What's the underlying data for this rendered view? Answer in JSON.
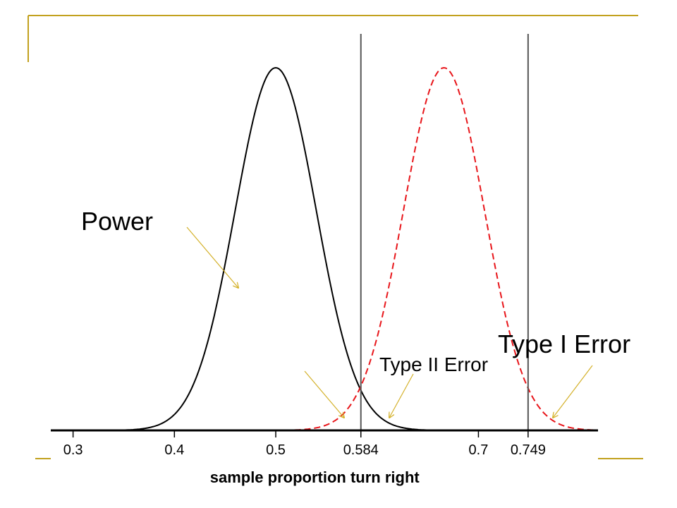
{
  "annotations": {
    "power": "Power",
    "type_two_error": "Type II Error",
    "type_one_error": "Type I Error"
  },
  "colors": {
    "null_curve": "#000000",
    "alt_curve": "#e8161b",
    "arrow": "#d4b12a",
    "frame": "#c2a11e",
    "critical_line": "#555555"
  },
  "chart_data": {
    "type": "line",
    "xlabel": "sample proportion turn right",
    "xlim": [
      0.278,
      0.818
    ],
    "x_ticks": [
      {
        "value": 0.3,
        "label": "0.3"
      },
      {
        "value": 0.4,
        "label": "0.4"
      },
      {
        "value": 0.5,
        "label": "0.5"
      },
      {
        "value": 0.584,
        "label": "0.584"
      },
      {
        "value": 0.7,
        "label": "0.7"
      },
      {
        "value": 0.749,
        "label": "0.749"
      }
    ],
    "critical_values": [
      0.584,
      0.749
    ],
    "series": [
      {
        "mean": 0.5,
        "sd": 0.04,
        "style": "solid",
        "color": "#000000",
        "x_range": [
          0.34,
          0.66
        ]
      },
      {
        "mean": 0.666,
        "sd": 0.04,
        "style": "dashed",
        "color": "#e8161b",
        "x_range": [
          0.46,
          0.818
        ]
      }
    ]
  }
}
